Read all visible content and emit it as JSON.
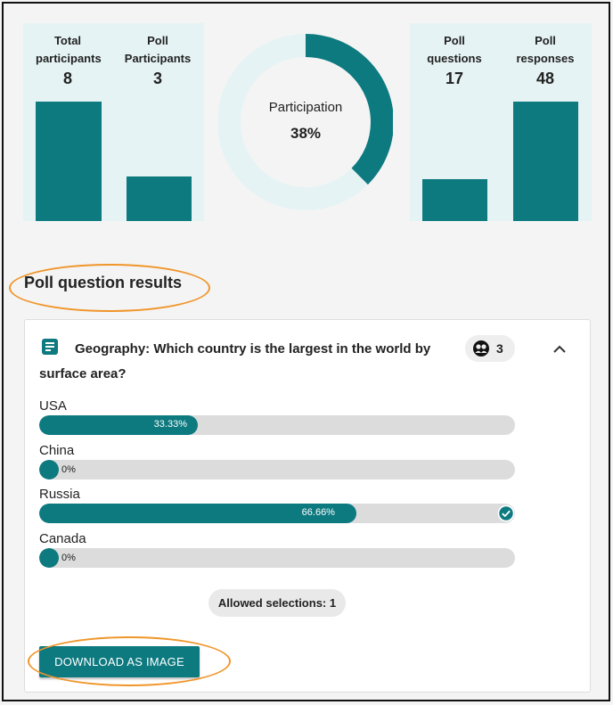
{
  "stats": {
    "total_participants": {
      "label": "Total participants",
      "value": "8",
      "level": 1.0
    },
    "poll_participants": {
      "label": "Poll Participants",
      "value": "3",
      "level": 0.375
    },
    "poll_questions": {
      "label": "Poll questions",
      "value": "17",
      "level": 0.354
    },
    "poll_responses": {
      "label": "Poll responses",
      "value": "48",
      "level": 1.0
    }
  },
  "participation": {
    "label": "Participation",
    "value": "38%",
    "fraction": 0.375
  },
  "section": {
    "title": "Poll question results"
  },
  "question": {
    "text": "Geography: Which country is the largest in the world by surface area?",
    "response_count": "3",
    "options": [
      {
        "label": "USA",
        "percent_text": "33.33%",
        "percent": 33.33,
        "correct": false
      },
      {
        "label": "China",
        "percent_text": "0%",
        "percent": 0,
        "correct": false
      },
      {
        "label": "Russia",
        "percent_text": "66.66%",
        "percent": 66.66,
        "correct": true
      },
      {
        "label": "Canada",
        "percent_text": "0%",
        "percent": 0,
        "correct": false
      }
    ],
    "allowed_selections": "Allowed selections: 1"
  },
  "actions": {
    "download_label": "DOWNLOAD AS IMAGE"
  },
  "colors": {
    "accent": "#0d7a80",
    "highlight": "#f0962b",
    "panel": "#e6f3f4"
  },
  "icons": {
    "question": "text-document-icon",
    "responses": "people-icon",
    "collapse": "chevron-up-icon",
    "correct": "check-circle-icon"
  }
}
